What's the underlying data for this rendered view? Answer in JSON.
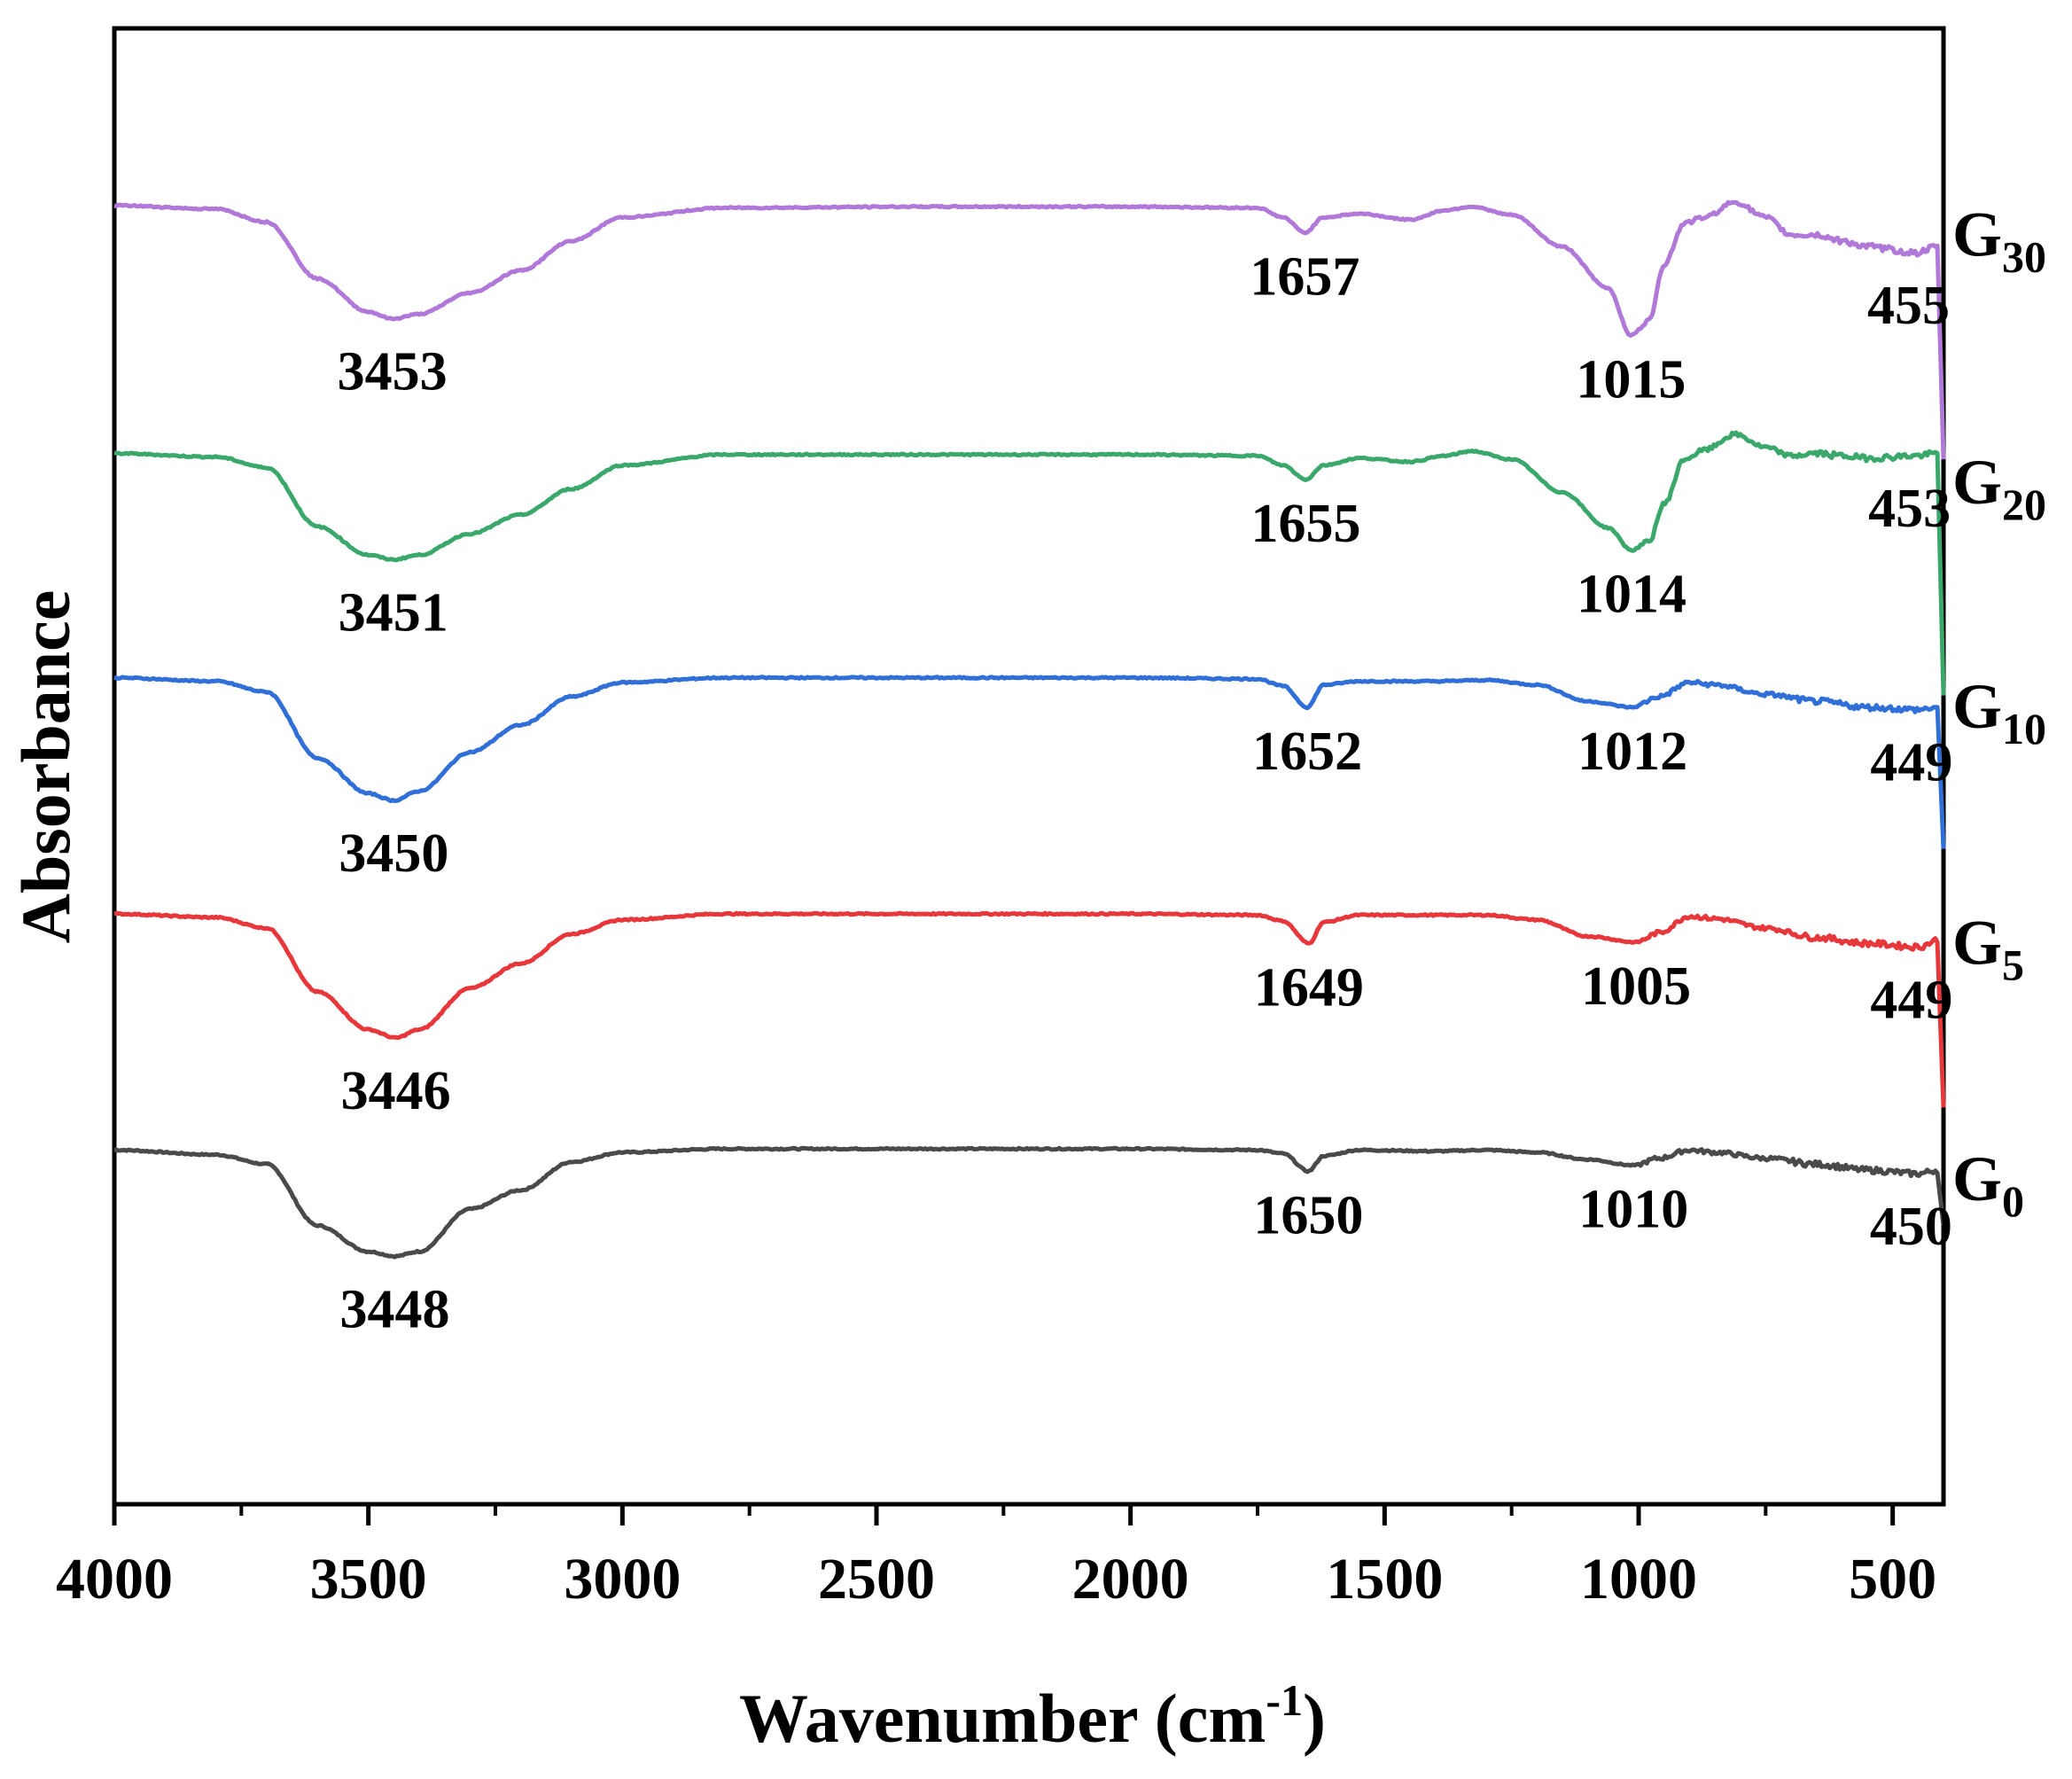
{
  "chart_data": {
    "type": "line",
    "title": "",
    "xlabel": "Wavenumber (cm",
    "xlabel_sup": "-1",
    "xlabel_close": ")",
    "ylabel": "Absorbance",
    "xlim": [
      4000,
      400
    ],
    "x_reversed": true,
    "x_ticks": [
      4000,
      3500,
      3000,
      2500,
      2000,
      1500,
      1000,
      500
    ],
    "x_minor_ticks": [
      3750,
      3250,
      2750,
      2250,
      1750,
      1250,
      750
    ],
    "y_ticks_shown": false,
    "ylim": [
      0,
      1.25
    ],
    "grid": false,
    "series": [
      {
        "name": "G0",
        "label_main": "G",
        "label_sub": "0",
        "color": "#4a4a4a",
        "offset": 0.3,
        "points": [
          [
            4000,
            0.3
          ],
          [
            3800,
            0.296
          ],
          [
            3700,
            0.288
          ],
          [
            3600,
            0.236
          ],
          [
            3500,
            0.214
          ],
          [
            3448,
            0.21
          ],
          [
            3400,
            0.214
          ],
          [
            3300,
            0.25
          ],
          [
            3200,
            0.266
          ],
          [
            3100,
            0.29
          ],
          [
            3000,
            0.298
          ],
          [
            2800,
            0.301
          ],
          [
            2400,
            0.301
          ],
          [
            2000,
            0.301
          ],
          [
            1750,
            0.3
          ],
          [
            1700,
            0.297
          ],
          [
            1650,
            0.282
          ],
          [
            1620,
            0.295
          ],
          [
            1550,
            0.3
          ],
          [
            1400,
            0.299
          ],
          [
            1300,
            0.3
          ],
          [
            1200,
            0.298
          ],
          [
            1100,
            0.292
          ],
          [
            1010,
            0.287
          ],
          [
            960,
            0.293
          ],
          [
            900,
            0.3
          ],
          [
            850,
            0.298
          ],
          [
            750,
            0.293
          ],
          [
            650,
            0.288
          ],
          [
            550,
            0.283
          ],
          [
            450,
            0.28
          ],
          [
            410,
            0.283
          ],
          [
            400,
            0.236
          ]
        ],
        "peaks": [
          {
            "x": 3448,
            "label": "3448"
          },
          {
            "x": 1650,
            "label": "1650"
          },
          {
            "x": 1010,
            "label": "1010"
          },
          {
            "x": 450,
            "label": "450"
          }
        ]
      },
      {
        "name": "G5",
        "label_main": "G",
        "label_sub": "5",
        "color": "#e8373b",
        "offset": 0.5,
        "points": [
          [
            4000,
            0.5
          ],
          [
            3800,
            0.497
          ],
          [
            3700,
            0.488
          ],
          [
            3600,
            0.434
          ],
          [
            3500,
            0.402
          ],
          [
            3446,
            0.395
          ],
          [
            3400,
            0.402
          ],
          [
            3300,
            0.437
          ],
          [
            3200,
            0.458
          ],
          [
            3100,
            0.483
          ],
          [
            3000,
            0.495
          ],
          [
            2800,
            0.5
          ],
          [
            2400,
            0.5
          ],
          [
            2000,
            0.5
          ],
          [
            1750,
            0.499
          ],
          [
            1700,
            0.494
          ],
          [
            1649,
            0.475
          ],
          [
            1620,
            0.493
          ],
          [
            1550,
            0.499
          ],
          [
            1400,
            0.499
          ],
          [
            1300,
            0.499
          ],
          [
            1200,
            0.495
          ],
          [
            1100,
            0.481
          ],
          [
            1005,
            0.476
          ],
          [
            960,
            0.484
          ],
          [
            900,
            0.498
          ],
          [
            850,
            0.496
          ],
          [
            750,
            0.488
          ],
          [
            650,
            0.48
          ],
          [
            550,
            0.475
          ],
          [
            449,
            0.472
          ],
          [
            410,
            0.478
          ],
          [
            400,
            0.336
          ]
        ],
        "peaks": [
          {
            "x": 3446,
            "label": "3446"
          },
          {
            "x": 1649,
            "label": "1649"
          },
          {
            "x": 1005,
            "label": "1005"
          },
          {
            "x": 449,
            "label": "449"
          }
        ]
      },
      {
        "name": "G10",
        "label_main": "G",
        "label_sub": "10",
        "color": "#2f6fd7",
        "offset": 0.7,
        "points": [
          [
            4000,
            0.7
          ],
          [
            3800,
            0.697
          ],
          [
            3700,
            0.688
          ],
          [
            3600,
            0.632
          ],
          [
            3500,
            0.602
          ],
          [
            3450,
            0.596
          ],
          [
            3400,
            0.604
          ],
          [
            3300,
            0.637
          ],
          [
            3200,
            0.66
          ],
          [
            3100,
            0.684
          ],
          [
            3000,
            0.696
          ],
          [
            2800,
            0.7
          ],
          [
            2400,
            0.7
          ],
          [
            2000,
            0.7
          ],
          [
            1750,
            0.699
          ],
          [
            1700,
            0.693
          ],
          [
            1652,
            0.675
          ],
          [
            1620,
            0.694
          ],
          [
            1550,
            0.697
          ],
          [
            1400,
            0.697
          ],
          [
            1300,
            0.698
          ],
          [
            1200,
            0.694
          ],
          [
            1100,
            0.68
          ],
          [
            1012,
            0.675
          ],
          [
            960,
            0.684
          ],
          [
            900,
            0.696
          ],
          [
            850,
            0.694
          ],
          [
            750,
            0.686
          ],
          [
            650,
            0.68
          ],
          [
            550,
            0.675
          ],
          [
            449,
            0.673
          ],
          [
            410,
            0.675
          ],
          [
            400,
            0.555
          ]
        ],
        "peaks": [
          {
            "x": 3450,
            "label": "3450"
          },
          {
            "x": 1652,
            "label": "1652"
          },
          {
            "x": 1012,
            "label": "1012"
          },
          {
            "x": 449,
            "label": "449"
          }
        ]
      },
      {
        "name": "G20",
        "label_main": "G",
        "label_sub": "20",
        "color": "#3ba86b",
        "offset": 0.89,
        "points": [
          [
            4000,
            0.89
          ],
          [
            3800,
            0.887
          ],
          [
            3700,
            0.878
          ],
          [
            3600,
            0.828
          ],
          [
            3500,
            0.804
          ],
          [
            3451,
            0.8
          ],
          [
            3400,
            0.804
          ],
          [
            3300,
            0.822
          ],
          [
            3200,
            0.838
          ],
          [
            3100,
            0.86
          ],
          [
            3000,
            0.88
          ],
          [
            2800,
            0.889
          ],
          [
            2400,
            0.889
          ],
          [
            2000,
            0.889
          ],
          [
            1750,
            0.888
          ],
          [
            1700,
            0.88
          ],
          [
            1655,
            0.868
          ],
          [
            1620,
            0.88
          ],
          [
            1550,
            0.886
          ],
          [
            1450,
            0.883
          ],
          [
            1380,
            0.888
          ],
          [
            1330,
            0.892
          ],
          [
            1250,
            0.885
          ],
          [
            1150,
            0.857
          ],
          [
            1060,
            0.827
          ],
          [
            1014,
            0.808
          ],
          [
            980,
            0.815
          ],
          [
            950,
            0.847
          ],
          [
            910,
            0.885
          ],
          [
            870,
            0.893
          ],
          [
            810,
            0.906
          ],
          [
            750,
            0.895
          ],
          [
            700,
            0.888
          ],
          [
            650,
            0.89
          ],
          [
            600,
            0.888
          ],
          [
            550,
            0.886
          ],
          [
            453,
            0.888
          ],
          [
            410,
            0.89
          ],
          [
            400,
            0.685
          ]
        ],
        "peaks": [
          {
            "x": 3451,
            "label": "3451"
          },
          {
            "x": 1655,
            "label": "1655"
          },
          {
            "x": 1014,
            "label": "1014"
          },
          {
            "x": 453,
            "label": "453"
          }
        ]
      },
      {
        "name": "G30",
        "label_main": "G",
        "label_sub": "30",
        "color": "#b078d8",
        "offset": 1.1,
        "points": [
          [
            4000,
            1.1
          ],
          [
            3800,
            1.097
          ],
          [
            3700,
            1.086
          ],
          [
            3600,
            1.038
          ],
          [
            3500,
            1.01
          ],
          [
            3453,
            1.004
          ],
          [
            3400,
            1.008
          ],
          [
            3300,
            1.026
          ],
          [
            3200,
            1.045
          ],
          [
            3100,
            1.07
          ],
          [
            3000,
            1.09
          ],
          [
            2800,
            1.098
          ],
          [
            2400,
            1.099
          ],
          [
            2000,
            1.099
          ],
          [
            1750,
            1.098
          ],
          [
            1700,
            1.09
          ],
          [
            1657,
            1.077
          ],
          [
            1620,
            1.09
          ],
          [
            1550,
            1.093
          ],
          [
            1450,
            1.088
          ],
          [
            1380,
            1.096
          ],
          [
            1330,
            1.099
          ],
          [
            1250,
            1.092
          ],
          [
            1150,
            1.065
          ],
          [
            1060,
            1.03
          ],
          [
            1015,
            0.99
          ],
          [
            980,
            1.002
          ],
          [
            950,
            1.05
          ],
          [
            910,
            1.085
          ],
          [
            870,
            1.09
          ],
          [
            810,
            1.103
          ],
          [
            750,
            1.09
          ],
          [
            700,
            1.075
          ],
          [
            650,
            1.075
          ],
          [
            600,
            1.07
          ],
          [
            550,
            1.065
          ],
          [
            455,
            1.06
          ],
          [
            410,
            1.065
          ],
          [
            400,
            0.885
          ]
        ],
        "peaks": [
          {
            "x": 3453,
            "label": "3453"
          },
          {
            "x": 1657,
            "label": "1657"
          },
          {
            "x": 1015,
            "label": "1015"
          },
          {
            "x": 455,
            "label": "455"
          }
        ]
      }
    ]
  }
}
